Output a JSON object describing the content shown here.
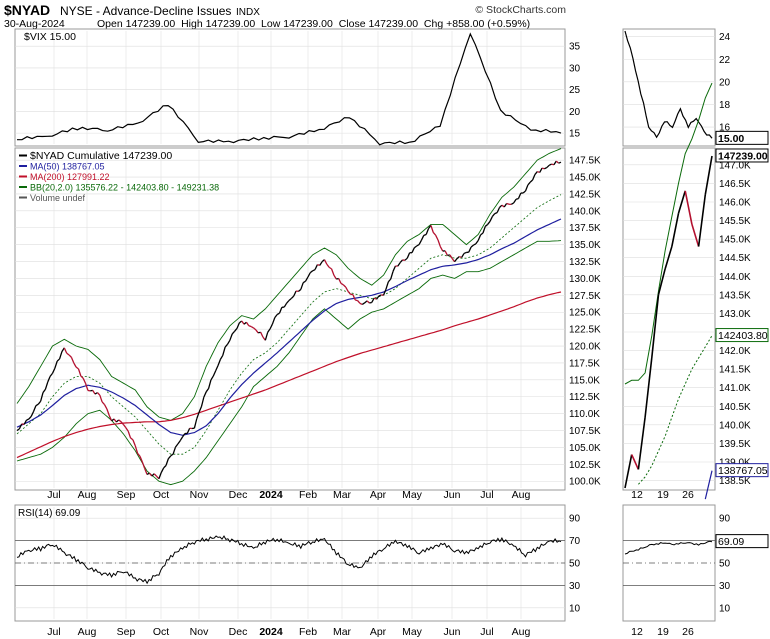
{
  "header": {
    "symbol": "$NYAD",
    "exchange_desc": "NYSE - Advance-Decline Issues",
    "index_tag": "INDX",
    "date": "30-Aug-2024",
    "ohlc": "Open 147239.00  High 147239.00  Low 147239.00  Close 147239.00  Chg +858.00 (+0.59%)",
    "copyright": "© StockCharts.com"
  },
  "colors": {
    "price": "#000000",
    "ma50": "#1f1f9f",
    "ma200": "#c0102a",
    "bb": "#0a6a0a",
    "candle_down": "#b3102f",
    "grid": "#dddddd",
    "frame": "#999999"
  },
  "chart_data": [
    {
      "type": "line",
      "panel": "VIX",
      "legend": "$VIX 15.00",
      "yticks": [
        15,
        20,
        25,
        30,
        35
      ],
      "ylim": [
        12.5,
        38.5
      ],
      "x": [
        "2023-06",
        "2023-07",
        "2023-08",
        "2023-09",
        "2023-10",
        "2023-11",
        "2023-12",
        "2024-01",
        "2024-02",
        "2024-03",
        "2024-04",
        "2024-05",
        "2024-06",
        "2024-07",
        "2024-08-01",
        "2024-08-05",
        "2024-08-10",
        "2024-08-20",
        "2024-08-30"
      ],
      "values": [
        13.5,
        14.0,
        16.0,
        15.5,
        17.0,
        21.5,
        13.0,
        12.8,
        13.5,
        14.0,
        15.5,
        18.5,
        12.5,
        12.6,
        16.5,
        38.0,
        20.0,
        15.5,
        15.0
      ],
      "last_label": "15.00",
      "zoom_yticks": [
        16,
        18,
        20,
        22,
        24
      ],
      "zoom_ylim": [
        14.5,
        24.5
      ],
      "zoom_values": [
        24.5,
        22.0,
        19.0,
        16.0,
        15.0,
        16.5,
        16.0,
        17.5,
        16.0,
        16.8,
        15.5,
        15.0
      ]
    },
    {
      "type": "line",
      "panel": "main",
      "legend": [
        "$NYAD Cumulative 147239.00",
        "MA(50) 138767.05",
        "MA(200) 127991.22",
        "BB(20,2.0) 135576.22 - 142403.80 - 149231.38",
        "Volume undef"
      ],
      "yticks": [
        "100.0K",
        "102.5K",
        "105.0K",
        "107.5K",
        "110.0K",
        "112.5K",
        "115.0K",
        "117.5K",
        "120.0K",
        "122.5K",
        "125.0K",
        "127.5K",
        "130.0K",
        "132.5K",
        "135.0K",
        "137.5K",
        "140.0K",
        "142.5K",
        "145.0K",
        "147.5K"
      ],
      "ylim": [
        99000,
        149000
      ],
      "x_labels": [
        "Jul",
        "Aug",
        "Sep",
        "Oct",
        "Nov",
        "Dec",
        "2024",
        "Feb",
        "Mar",
        "Apr",
        "May",
        "Jun",
        "Jul",
        "Aug"
      ],
      "series": [
        {
          "name": "$NYAD Cumulative",
          "values": [
            107500,
            109000,
            112000,
            116000,
            119500,
            117000,
            113500,
            112500,
            109000,
            108500,
            105000,
            101000,
            100500,
            103500,
            106500,
            108000,
            113000,
            117000,
            121000,
            123500,
            122500,
            121000,
            124500,
            126500,
            128500,
            131000,
            132500,
            130000,
            128000,
            126000,
            126500,
            127500,
            131500,
            133000,
            135000,
            137500,
            134000,
            132500,
            133500,
            135500,
            138500,
            140500,
            141000,
            143000,
            145500,
            146500,
            147200
          ]
        },
        {
          "name": "MA(50)",
          "values": [
            108000,
            108800,
            109800,
            111200,
            112700,
            113700,
            114200,
            113900,
            113200,
            112300,
            111200,
            109800,
            108400,
            107200,
            106800,
            107200,
            108200,
            110000,
            112300,
            114300,
            116000,
            117500,
            119000,
            120600,
            122200,
            123800,
            125200,
            126300,
            126900,
            127200,
            127500,
            128000,
            128800,
            129700,
            130500,
            131300,
            131800,
            132000,
            132300,
            132800,
            133500,
            134400,
            135200,
            136200,
            137200,
            138000,
            138800
          ]
        },
        {
          "name": "MA(200)",
          "values": [
            103500,
            104300,
            105100,
            105900,
            106600,
            107200,
            107700,
            108100,
            108400,
            108600,
            108700,
            108800,
            108800,
            109000,
            109400,
            109900,
            110500,
            111100,
            111700,
            112300,
            112900,
            113500,
            114200,
            114900,
            115600,
            116300,
            117000,
            117700,
            118300,
            118900,
            119400,
            119900,
            120400,
            120900,
            121400,
            121900,
            122400,
            123000,
            123500,
            124000,
            124600,
            125200,
            125800,
            126500,
            127100,
            127600,
            128000
          ]
        },
        {
          "name": "BB upper",
          "values": [
            111500,
            114000,
            117000,
            120000,
            121000,
            120000,
            119500,
            118000,
            115500,
            114500,
            113500,
            111000,
            109500,
            109000,
            110000,
            112500,
            117000,
            120500,
            123000,
            124500,
            124000,
            125500,
            127500,
            129500,
            131500,
            133500,
            134500,
            133500,
            131500,
            130000,
            129000,
            130500,
            133500,
            135500,
            136500,
            138000,
            138000,
            136500,
            135000,
            136500,
            139500,
            142000,
            143500,
            145500,
            147500,
            148500,
            149200
          ]
        },
        {
          "name": "BB mid",
          "values": [
            107000,
            108500,
            110000,
            112500,
            114500,
            115500,
            115500,
            114500,
            112500,
            111000,
            109500,
            107500,
            105500,
            104000,
            104000,
            105000,
            107500,
            110500,
            113500,
            116000,
            118000,
            119000,
            120500,
            122500,
            124500,
            126500,
            128000,
            128500,
            128000,
            127500,
            127000,
            127500,
            128500,
            130000,
            131500,
            133000,
            133500,
            133000,
            133000,
            133500,
            134500,
            136000,
            137500,
            139000,
            140500,
            141500,
            142400
          ]
        },
        {
          "name": "BB lower",
          "values": [
            103000,
            103500,
            104000,
            105000,
            106500,
            108500,
            110000,
            110500,
            109000,
            107000,
            104500,
            101500,
            100000,
            99500,
            100000,
            101500,
            103500,
            106000,
            108500,
            111000,
            114000,
            115500,
            117000,
            119000,
            121500,
            124000,
            125500,
            124000,
            122500,
            124000,
            125000,
            125500,
            126500,
            127500,
            128500,
            130000,
            130500,
            130000,
            131000,
            131000,
            131500,
            132500,
            133500,
            134500,
            135500,
            135500,
            135600
          ]
        }
      ]
    },
    {
      "type": "line",
      "panel": "RSI",
      "legend": "RSI(14) 69.09",
      "yticks": [
        10,
        30,
        50,
        70,
        90
      ],
      "ylim": [
        0,
        100
      ],
      "reference_lines": [
        30,
        50,
        70
      ],
      "values": [
        55,
        60,
        62,
        66,
        58,
        52,
        45,
        40,
        38,
        42,
        35,
        32,
        40,
        55,
        62,
        68,
        70,
        72,
        70,
        66,
        62,
        68,
        70,
        66,
        64,
        68,
        70,
        58,
        48,
        44,
        55,
        62,
        68,
        64,
        58,
        62,
        66,
        60,
        58,
        62,
        68,
        70,
        64,
        56,
        62,
        68,
        69
      ],
      "last_label": "69.09",
      "zoom_values": [
        58,
        60,
        62,
        64,
        66,
        67,
        68,
        66,
        67,
        68,
        67,
        66,
        68,
        69
      ]
    }
  ],
  "zoom": {
    "x_labels": [
      "12",
      "19",
      "26"
    ],
    "price_yticks": [
      "138.5K",
      "139.0K",
      "139.5K",
      "140.0K",
      "140.5K",
      "141.0K",
      "141.5K",
      "142.0K",
      "142.5K",
      "143.0K",
      "143.5K",
      "144.0K",
      "144.5K",
      "145.0K",
      "145.5K",
      "146.0K",
      "146.5K",
      "147.0K"
    ],
    "ylim": [
      138300,
      147400
    ],
    "price": [
      138300,
      139200,
      138800,
      140200,
      141800,
      143500,
      144200,
      144800,
      145700,
      146300,
      145400,
      144800,
      146200,
      147239
    ],
    "bb_upper": [
      141100,
      141200,
      141200,
      141400,
      142400,
      143600,
      144700,
      145600,
      146500,
      147300,
      147700,
      148200,
      148800,
      149200
    ],
    "bb_mid": [
      null,
      null,
      138400,
      138600,
      138900,
      139300,
      139700,
      140200,
      140700,
      141100,
      141500,
      141800,
      142100,
      142404
    ],
    "ma50": [
      null,
      null,
      null,
      null,
      null,
      null,
      null,
      null,
      null,
      null,
      null,
      null,
      138000,
      138767
    ],
    "labels": {
      "price": "147239.00",
      "bb_mid": "142403.80",
      "ma50": "138767.05"
    }
  }
}
